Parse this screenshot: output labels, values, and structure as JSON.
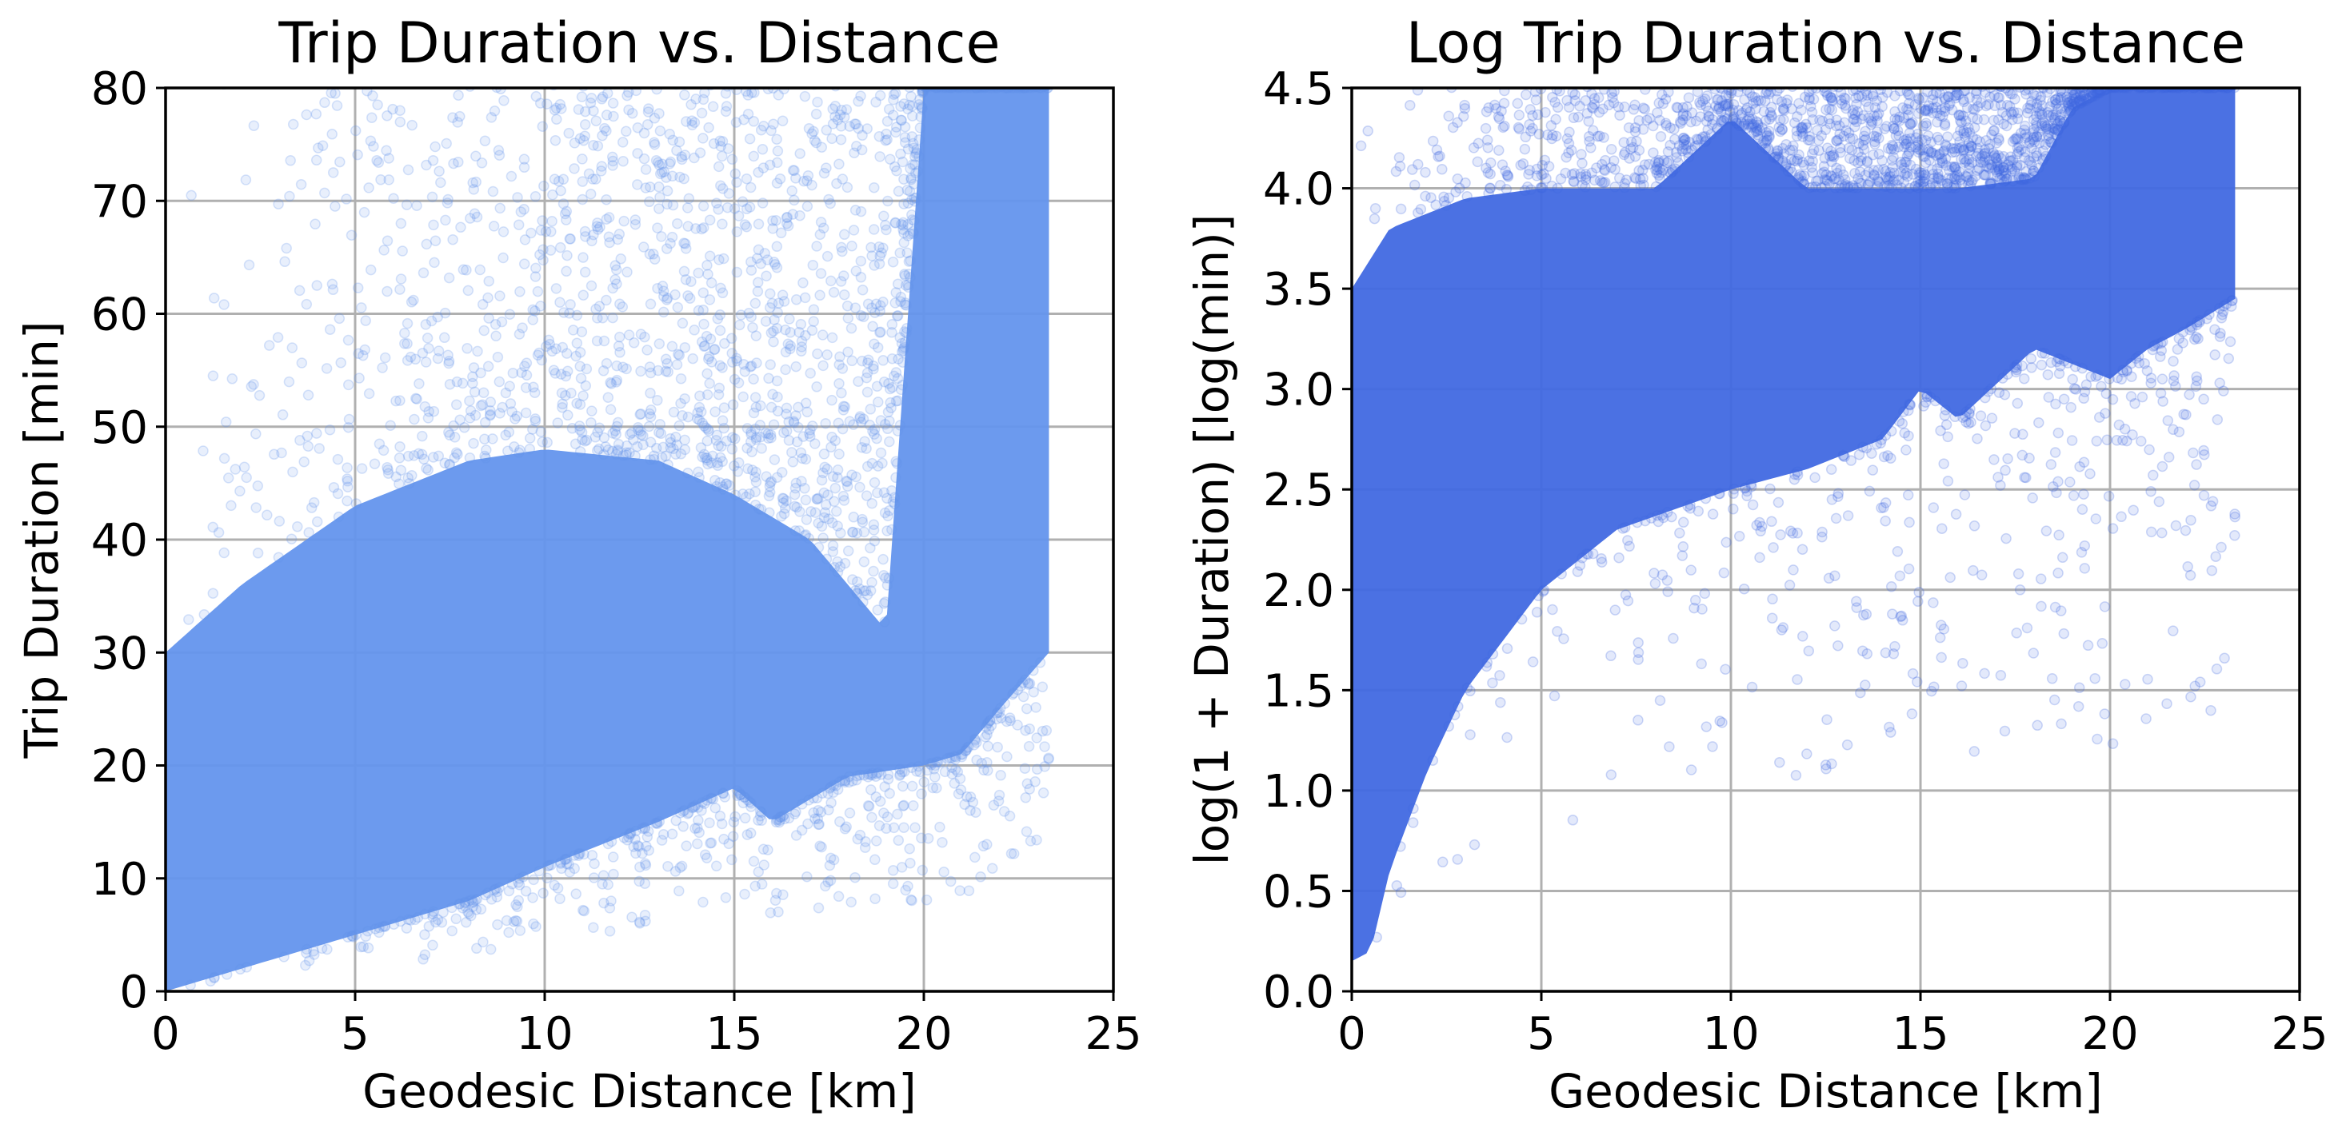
{
  "chart_data": [
    {
      "type": "scatter",
      "title": "Trip Duration vs. Distance",
      "xlabel": "Geodesic Distance [km]",
      "ylabel": "Trip Duration [min]",
      "xlim": [
        0,
        25
      ],
      "ylim": [
        0,
        80
      ],
      "xticks": [
        0,
        5,
        10,
        15,
        20,
        25
      ],
      "yticks": [
        0,
        10,
        20,
        30,
        40,
        50,
        60,
        70,
        80
      ],
      "grid": true,
      "color": "#6495ed",
      "point_alpha": 0.15,
      "lower_envelope": [
        [
          0,
          0
        ],
        [
          2,
          2
        ],
        [
          5,
          5
        ],
        [
          8,
          8
        ],
        [
          10,
          11
        ],
        [
          13,
          15
        ],
        [
          15,
          18
        ],
        [
          16,
          15
        ],
        [
          18,
          19
        ],
        [
          20,
          20
        ],
        [
          21,
          21
        ],
        [
          22,
          25
        ],
        [
          23.3,
          30
        ]
      ],
      "dense_upper": [
        [
          0,
          30
        ],
        [
          2,
          36
        ],
        [
          5,
          43
        ],
        [
          8,
          47
        ],
        [
          10,
          48
        ],
        [
          13,
          47
        ],
        [
          15,
          44
        ],
        [
          17,
          40
        ],
        [
          19,
          32
        ],
        [
          20,
          80
        ],
        [
          23.3,
          80
        ]
      ],
      "x_max": 23.3
    },
    {
      "type": "scatter",
      "title": "Log Trip Duration vs. Distance",
      "xlabel": "Geodesic Distance [km]",
      "ylabel": "log(1 + Duration) [log(min)]",
      "xlim": [
        0,
        25
      ],
      "ylim": [
        0,
        4.5
      ],
      "xticks": [
        0,
        5,
        10,
        15,
        20,
        25
      ],
      "yticks": [
        0.0,
        0.5,
        1.0,
        1.5,
        2.0,
        2.5,
        3.0,
        3.5,
        4.0,
        4.5
      ],
      "grid": true,
      "color": "#4169e1",
      "point_alpha": 0.15,
      "lower_envelope": [
        [
          0,
          0.15
        ],
        [
          0.5,
          0.2
        ],
        [
          1,
          0.6
        ],
        [
          2,
          1.1
        ],
        [
          3,
          1.5
        ],
        [
          4,
          1.75
        ],
        [
          5,
          2.0
        ],
        [
          7,
          2.3
        ],
        [
          10,
          2.5
        ],
        [
          12,
          2.6
        ],
        [
          14,
          2.75
        ],
        [
          15,
          3.0
        ],
        [
          16,
          2.85
        ],
        [
          18,
          3.2
        ],
        [
          20,
          3.05
        ],
        [
          21,
          3.2
        ],
        [
          22,
          3.3
        ],
        [
          23.3,
          3.45
        ]
      ],
      "dense_upper": [
        [
          0,
          3.5
        ],
        [
          1,
          3.8
        ],
        [
          3,
          3.95
        ],
        [
          5,
          4.0
        ],
        [
          8,
          4.0
        ],
        [
          10,
          4.35
        ],
        [
          12,
          4.0
        ],
        [
          14,
          4.0
        ],
        [
          16,
          4.0
        ],
        [
          18,
          4.05
        ],
        [
          19,
          4.4
        ],
        [
          20,
          4.5
        ],
        [
          23.3,
          4.5
        ]
      ],
      "x_max": 23.3
    }
  ]
}
